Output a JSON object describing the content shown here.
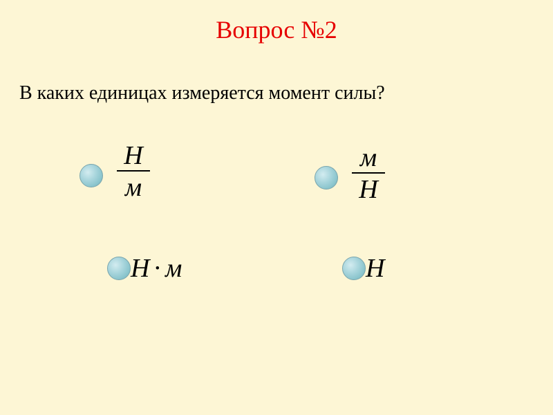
{
  "slide": {
    "title": "Вопрос №2",
    "title_color": "#e60000",
    "title_fontsize": 36,
    "question": "В каких единицах измеряется момент силы?",
    "question_color": "#000000",
    "question_fontsize": 28,
    "background_color": "#fdf6d5"
  },
  "options": {
    "a": {
      "type": "fraction",
      "numerator": "Н",
      "denominator": "м"
    },
    "b": {
      "type": "fraction",
      "numerator": "м",
      "denominator": "Н"
    },
    "c": {
      "type": "product",
      "left": "Н",
      "op": "·",
      "right": "м"
    },
    "d": {
      "type": "simple",
      "text": "Н"
    }
  },
  "radio_style": {
    "diameter": 34,
    "fill_gradient": [
      "#d3ecf0",
      "#a8d5dc",
      "#8bc5cd",
      "#6fadb5"
    ],
    "border": "#7aa5ad"
  },
  "formula_style": {
    "fontsize": 38,
    "font_style": "italic",
    "color": "#000000",
    "divider_color": "#000000",
    "divider_thickness": 2
  }
}
